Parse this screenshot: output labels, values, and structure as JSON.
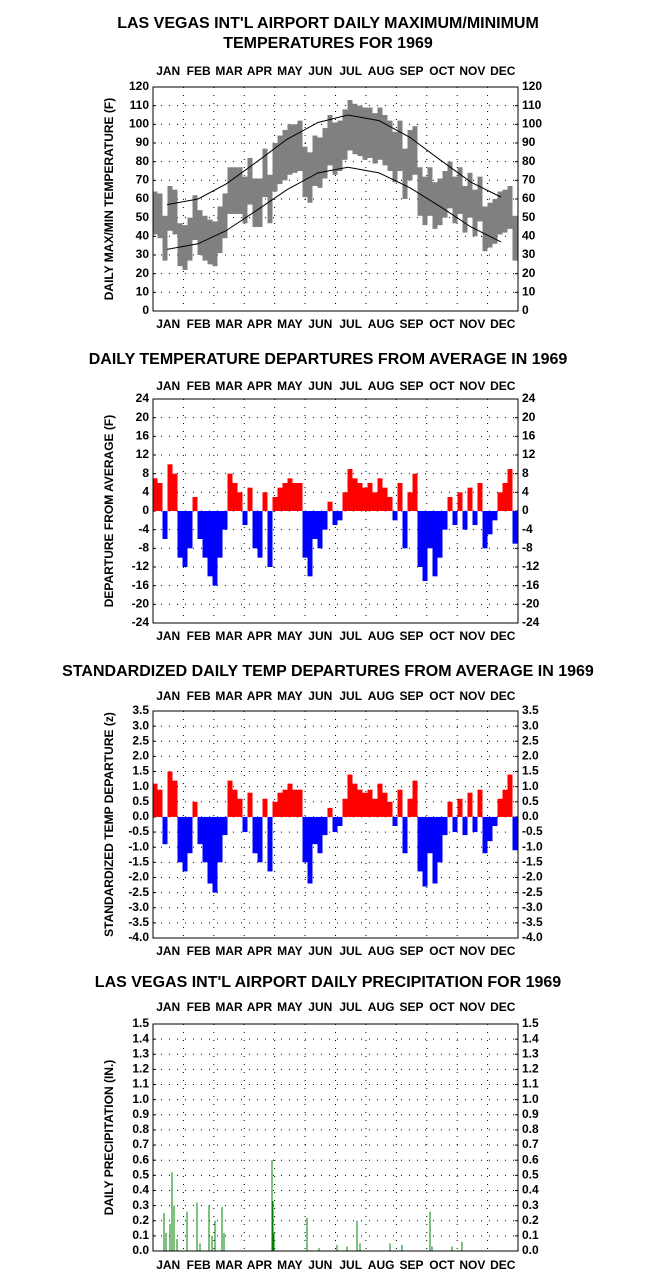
{
  "chart_data": [
    {
      "type": "range",
      "title": [
        "LAS VEGAS INT'L AIRPORT DAILY MAXIMUM/MINIMUM",
        "TEMPERATURES FOR 1969"
      ],
      "y_label": "DAILY MAX/MIN TEMPERATURE (F)",
      "categories": [
        "JAN",
        "FEB",
        "MAR",
        "APR",
        "MAY",
        "JUN",
        "JUL",
        "AUG",
        "SEP",
        "OCT",
        "NOV",
        "DEC"
      ],
      "xlim": [
        1,
        366
      ],
      "ylim": [
        0,
        120
      ],
      "yticks": [
        0,
        10,
        20,
        30,
        40,
        50,
        60,
        70,
        80,
        90,
        100,
        110,
        120
      ],
      "grid": true,
      "color": "#808080",
      "normal_color": "#000000",
      "x": [
        3,
        8,
        13,
        18,
        23,
        28,
        33,
        38,
        43,
        48,
        53,
        58,
        63,
        68,
        73,
        78,
        83,
        88,
        93,
        98,
        103,
        108,
        113,
        118,
        123,
        128,
        133,
        138,
        143,
        148,
        153,
        158,
        163,
        168,
        173,
        178,
        183,
        188,
        193,
        198,
        203,
        208,
        213,
        218,
        223,
        228,
        233,
        238,
        243,
        248,
        253,
        258,
        263,
        268,
        273,
        278,
        283,
        288,
        293,
        298,
        303,
        308,
        313,
        318,
        323,
        328,
        333,
        338,
        343,
        348,
        353,
        358,
        363
      ],
      "max": [
        64,
        63,
        51,
        67,
        65,
        47,
        46,
        50,
        62,
        54,
        51,
        49,
        48,
        56,
        63,
        77,
        77,
        77,
        72,
        82,
        71,
        71,
        87,
        73,
        90,
        94,
        97,
        100,
        100,
        102,
        88,
        85,
        94,
        93,
        98,
        105,
        101,
        102,
        108,
        113,
        111,
        110,
        109,
        109,
        106,
        109,
        105,
        102,
        96,
        102,
        87,
        97,
        99,
        77,
        72,
        77,
        69,
        71,
        75,
        80,
        72,
        77,
        67,
        74,
        65,
        72,
        56,
        58,
        60,
        64,
        65,
        67,
        51
      ],
      "min": [
        41,
        39,
        27,
        43,
        41,
        24,
        22,
        27,
        38,
        30,
        27,
        25,
        24,
        31,
        39,
        52,
        52,
        52,
        47,
        57,
        45,
        45,
        61,
        47,
        64,
        68,
        70,
        73,
        74,
        75,
        61,
        58,
        67,
        66,
        71,
        78,
        73,
        75,
        81,
        86,
        84,
        83,
        81,
        82,
        79,
        81,
        78,
        75,
        69,
        75,
        60,
        70,
        73,
        51,
        46,
        51,
        44,
        46,
        50,
        55,
        47,
        52,
        42,
        50,
        40,
        48,
        32,
        34,
        36,
        41,
        42,
        44,
        27
      ],
      "normal_x": [
        15,
        46,
        74,
        105,
        135,
        166,
        196,
        227,
        258,
        288,
        319,
        349
      ],
      "normal_max": [
        57,
        60,
        68,
        80,
        92,
        101,
        105,
        102,
        93,
        81,
        69,
        61
      ],
      "normal_min": [
        33,
        36,
        43,
        54,
        65,
        74,
        77,
        74,
        66,
        56,
        45,
        37
      ]
    },
    {
      "type": "bar",
      "title": [
        "DAILY TEMPERATURE DEPARTURES FROM AVERAGE IN 1969"
      ],
      "y_label": "DEPARTURE FROM AVERAGE (F)",
      "categories": [
        "JAN",
        "FEB",
        "MAR",
        "APR",
        "MAY",
        "JUN",
        "JUL",
        "AUG",
        "SEP",
        "OCT",
        "NOV",
        "DEC"
      ],
      "xlim": [
        1,
        366
      ],
      "ylim": [
        -24,
        24
      ],
      "yticks": [
        -24,
        -20,
        -16,
        -12,
        -8,
        -4,
        0,
        4,
        8,
        12,
        16,
        20,
        24
      ],
      "grid": true,
      "pos_color": "#ff0000",
      "neg_color": "#0000ff",
      "x": [
        3,
        8,
        13,
        18,
        23,
        28,
        33,
        38,
        43,
        48,
        53,
        58,
        63,
        68,
        73,
        78,
        83,
        88,
        93,
        98,
        103,
        108,
        113,
        118,
        123,
        128,
        133,
        138,
        143,
        148,
        153,
        158,
        163,
        168,
        173,
        178,
        183,
        188,
        193,
        198,
        203,
        208,
        213,
        218,
        223,
        228,
        233,
        238,
        243,
        248,
        253,
        258,
        263,
        268,
        273,
        278,
        283,
        288,
        293,
        298,
        303,
        308,
        313,
        318,
        323,
        328,
        333,
        338,
        343,
        348,
        353,
        358,
        363
      ],
      "values": [
        7,
        6,
        -6,
        10,
        8,
        -10,
        -12,
        -8,
        3,
        -6,
        -10,
        -14,
        -16,
        -10,
        -4,
        8,
        6,
        4,
        -3,
        5,
        -8,
        -10,
        4,
        -12,
        3,
        5,
        6,
        7,
        6,
        6,
        -10,
        -14,
        -6,
        -8,
        -4,
        2,
        -3,
        -2,
        4,
        9,
        7,
        6,
        5,
        6,
        4,
        7,
        5,
        3,
        -2,
        6,
        -8,
        4,
        8,
        -12,
        -15,
        -8,
        -14,
        -10,
        -4,
        3,
        -3,
        4,
        -4,
        5,
        -3,
        6,
        -8,
        -5,
        -2,
        4,
        6,
        9,
        -7
      ]
    },
    {
      "type": "bar",
      "title": [
        "STANDARDIZED DAILY TEMP DEPARTURES FROM AVERAGE IN 1969"
      ],
      "y_label": "STANDARDIZED TEMP DEPARTURE (z)",
      "categories": [
        "JAN",
        "FEB",
        "MAR",
        "APR",
        "MAY",
        "JUN",
        "JUL",
        "AUG",
        "SEP",
        "OCT",
        "NOV",
        "DEC"
      ],
      "xlim": [
        1,
        366
      ],
      "ylim": [
        -4,
        3.5
      ],
      "yticks": [
        {
          "value": -4,
          "label": "-4.0"
        },
        -3.5,
        {
          "value": -3,
          "label": "-3.0"
        },
        -2.5,
        {
          "value": -2,
          "label": "-2.0"
        },
        -1.5,
        {
          "value": -1,
          "label": "-1.0"
        },
        -0.5,
        {
          "value": 0,
          "label": "0.0"
        },
        0.5,
        {
          "value": 1,
          "label": "1.0"
        },
        1.5,
        {
          "value": 2,
          "label": "2.0"
        },
        2.5,
        {
          "value": 3,
          "label": "3.0"
        },
        3.5
      ],
      "grid": true,
      "pos_color": "#ff0000",
      "neg_color": "#0000ff",
      "x": [
        3,
        8,
        13,
        18,
        23,
        28,
        33,
        38,
        43,
        48,
        53,
        58,
        63,
        68,
        73,
        78,
        83,
        88,
        93,
        98,
        103,
        108,
        113,
        118,
        123,
        128,
        133,
        138,
        143,
        148,
        153,
        158,
        163,
        168,
        173,
        178,
        183,
        188,
        193,
        198,
        203,
        208,
        213,
        218,
        223,
        228,
        233,
        238,
        243,
        248,
        253,
        258,
        263,
        268,
        273,
        278,
        283,
        288,
        293,
        298,
        303,
        308,
        313,
        318,
        323,
        328,
        333,
        338,
        343,
        348,
        353,
        358,
        363
      ],
      "values": [
        1.1,
        0.9,
        -0.9,
        1.5,
        1.2,
        -1.5,
        -1.8,
        -1.2,
        0.5,
        -0.9,
        -1.5,
        -2.2,
        -2.5,
        -1.5,
        -0.6,
        1.2,
        0.9,
        0.6,
        -0.5,
        0.8,
        -1.2,
        -1.5,
        0.6,
        -1.8,
        0.5,
        0.8,
        0.9,
        1.1,
        0.9,
        0.9,
        -1.5,
        -2.2,
        -0.9,
        -1.2,
        -0.6,
        0.3,
        -0.5,
        -0.3,
        0.6,
        1.4,
        1.1,
        0.9,
        0.8,
        0.9,
        0.6,
        1.1,
        0.8,
        0.5,
        -0.3,
        0.9,
        -1.2,
        0.6,
        1.2,
        -1.8,
        -2.3,
        -1.2,
        -2.2,
        -1.5,
        -0.6,
        0.5,
        -0.5,
        0.6,
        -0.6,
        0.8,
        -0.5,
        0.9,
        -1.2,
        -0.8,
        -0.3,
        0.6,
        0.9,
        1.4,
        -1.1
      ]
    },
    {
      "type": "bar",
      "title": [
        "LAS VEGAS INT'L AIRPORT DAILY PRECIPITATION FOR 1969"
      ],
      "y_label": "DAILY PRECIPITATION (IN.)",
      "categories": [
        "JAN",
        "FEB",
        "MAR",
        "APR",
        "MAY",
        "JUN",
        "JUL",
        "AUG",
        "SEP",
        "OCT",
        "NOV",
        "DEC"
      ],
      "xlim": [
        1,
        366
      ],
      "ylim": [
        0,
        1.5
      ],
      "yticks": [
        {
          "value": 0,
          "label": "0.0"
        },
        0.1,
        0.2,
        0.3,
        0.4,
        0.5,
        0.6,
        0.7,
        0.8,
        0.9,
        {
          "value": 1,
          "label": "1.0"
        },
        1.1,
        1.2,
        1.3,
        1.4,
        1.5
      ],
      "grid": true,
      "color": "#008000",
      "bar_width": 1,
      "x": [
        12,
        14,
        18,
        20,
        22,
        25,
        35,
        45,
        48,
        57,
        60,
        63,
        70,
        72,
        120,
        121,
        122,
        155,
        167,
        185,
        195,
        205,
        208,
        238,
        250,
        278,
        280,
        300,
        310
      ],
      "values": [
        0.25,
        0.12,
        0.18,
        0.52,
        0.3,
        0.08,
        0.26,
        0.32,
        0.05,
        0.3,
        0.1,
        0.2,
        0.29,
        0.12,
        0.6,
        0.33,
        0.12,
        0.22,
        0.02,
        0.04,
        0.03,
        0.2,
        0.05,
        0.05,
        0.04,
        0.26,
        0.03,
        0.03,
        0.06
      ]
    }
  ]
}
